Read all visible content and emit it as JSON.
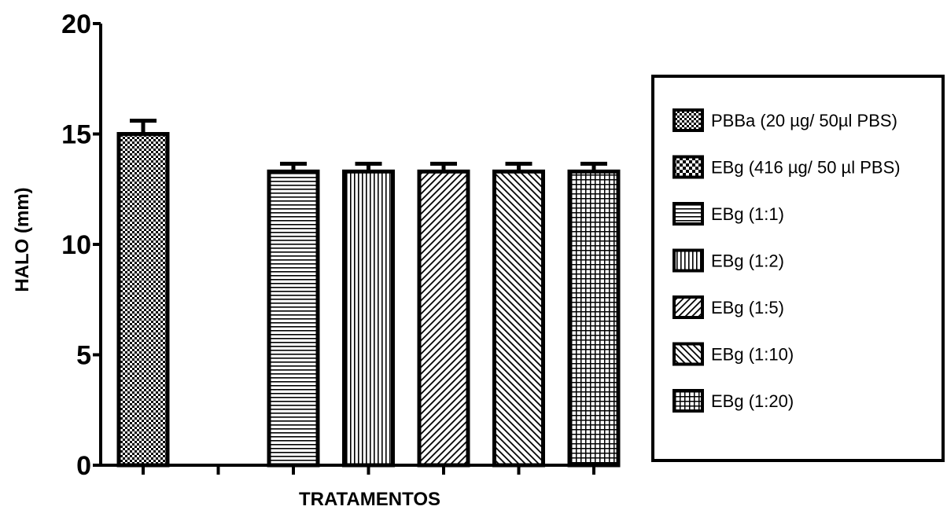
{
  "chart_data": {
    "type": "bar",
    "title": "",
    "xlabel": "TRATAMENTOS",
    "ylabel": "HALO (mm)",
    "ylim": [
      0,
      20
    ],
    "yticks": [
      0,
      5,
      10,
      15,
      20
    ],
    "categories": [
      "PBBa (20 µg/ 50µl PBS)",
      "EBg (416 µg/ 50 µl PBS)",
      "EBg (1:1)",
      "EBg (1:2)",
      "EBg (1:5)",
      "EBg (1:10)",
      "EBg (1:20)"
    ],
    "values": [
      15.0,
      0,
      13.3,
      13.3,
      13.3,
      13.3,
      13.3
    ],
    "errors": [
      0.6,
      0,
      0.35,
      0.35,
      0.35,
      0.35,
      0.35
    ],
    "patterns": [
      "checker-fine",
      "checker-coarse",
      "horizontal",
      "vertical",
      "diag-right",
      "diag-left",
      "grid"
    ],
    "legend_position": "right",
    "grid": false
  }
}
